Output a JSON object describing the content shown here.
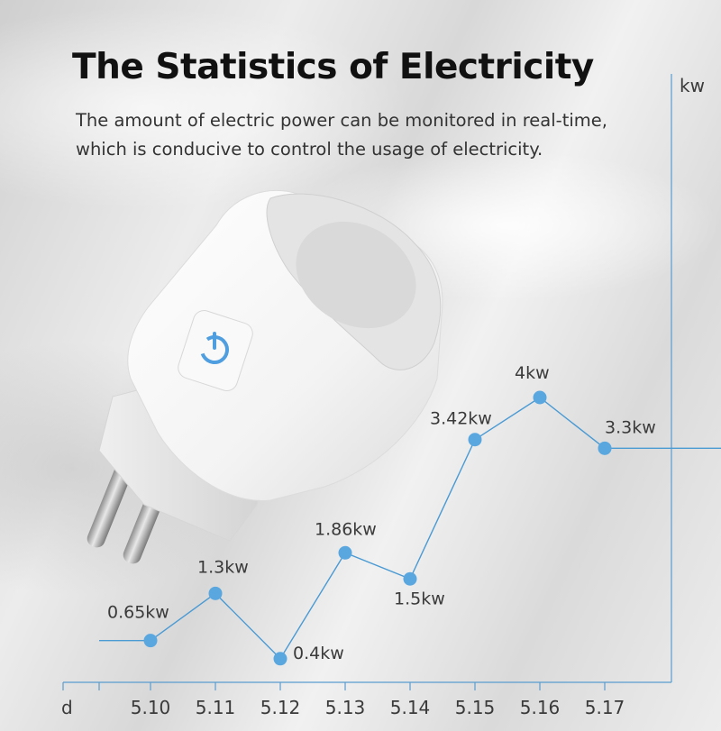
{
  "header": {
    "title": "The Statistics of Electricity",
    "subtitle": "The amount of electric power can be monitored in real-time, which is conducive to control the usage of electricity."
  },
  "chart_data": {
    "type": "line",
    "xlabel": "d",
    "ylabel": "kw",
    "x": [
      "5.10",
      "5.11",
      "5.12",
      "5.13",
      "5.14",
      "5.15",
      "5.16",
      "5.17"
    ],
    "values": [
      0.65,
      1.3,
      0.4,
      1.86,
      1.5,
      3.42,
      4,
      3.3
    ],
    "data_labels": [
      "0.65kw",
      "1.3kw",
      "0.4kw",
      "1.86kw",
      "1.5kw",
      "3.42kw",
      "4kw",
      "3.3kw"
    ],
    "grid": false,
    "colors": {
      "line": "#4a9ad4",
      "marker": "#5aa7e0",
      "axis": "#5a9ccf"
    }
  },
  "product": {
    "name": "smart-plug-image",
    "colors": {
      "body": "#f7f7f7",
      "button_ring": "#4f9ee0",
      "pins": "#b9b9b9"
    }
  }
}
